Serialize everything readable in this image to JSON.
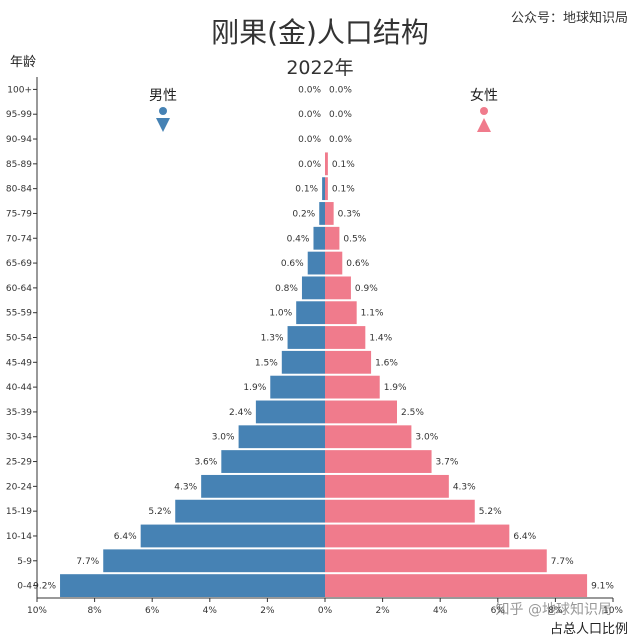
{
  "chart_data": {
    "type": "bar",
    "title": "刚果(金)人口结构",
    "subtitle": "2022年",
    "credit": "公众号：地球知识局",
    "ylabel": "年龄",
    "xlabel": "占总人口比例",
    "x_ticks": [
      "10%",
      "8%",
      "6%",
      "4%",
      "2%",
      "0%",
      "2%",
      "4%",
      "6%",
      "8%",
      "10%"
    ],
    "xlim": [
      -10,
      10
    ],
    "categories": [
      "100+",
      "95-99",
      "90-94",
      "85-89",
      "80-84",
      "75-79",
      "70-74",
      "65-69",
      "60-64",
      "55-59",
      "50-54",
      "45-49",
      "40-44",
      "35-39",
      "30-34",
      "25-29",
      "20-24",
      "15-19",
      "10-14",
      "5-9",
      "0-4"
    ],
    "series": [
      {
        "name": "男性",
        "color": "#4682b4",
        "values": [
          0.0,
          0.0,
          0.0,
          0.0,
          0.1,
          0.2,
          0.4,
          0.6,
          0.8,
          1.0,
          1.3,
          1.5,
          1.9,
          2.4,
          3.0,
          3.6,
          4.3,
          5.2,
          6.4,
          7.7,
          9.2
        ],
        "labels": [
          "0.0%",
          "0.0%",
          "0.0%",
          "0.0%",
          "0.1%",
          "0.2%",
          "0.4%",
          "0.6%",
          "0.8%",
          "1.0%",
          "1.3%",
          "1.5%",
          "1.9%",
          "2.4%",
          "3.0%",
          "3.6%",
          "4.3%",
          "5.2%",
          "6.4%",
          "7.7%",
          "9.2%"
        ]
      },
      {
        "name": "女性",
        "color": "#f07b8c",
        "values": [
          0.0,
          0.0,
          0.0,
          0.1,
          0.1,
          0.3,
          0.5,
          0.6,
          0.9,
          1.1,
          1.4,
          1.6,
          1.9,
          2.5,
          3.0,
          3.7,
          4.3,
          5.2,
          6.4,
          7.7,
          9.1
        ],
        "labels": [
          "0.0%",
          "0.0%",
          "0.0%",
          "0.1%",
          "0.1%",
          "0.3%",
          "0.5%",
          "0.6%",
          "0.9%",
          "1.1%",
          "1.4%",
          "1.6%",
          "1.9%",
          "2.5%",
          "3.0%",
          "3.7%",
          "4.3%",
          "5.2%",
          "6.4%",
          "7.7%",
          "9.1%"
        ]
      }
    ],
    "legend": "top",
    "grid": false,
    "watermark": "知乎 @地球知识局"
  }
}
